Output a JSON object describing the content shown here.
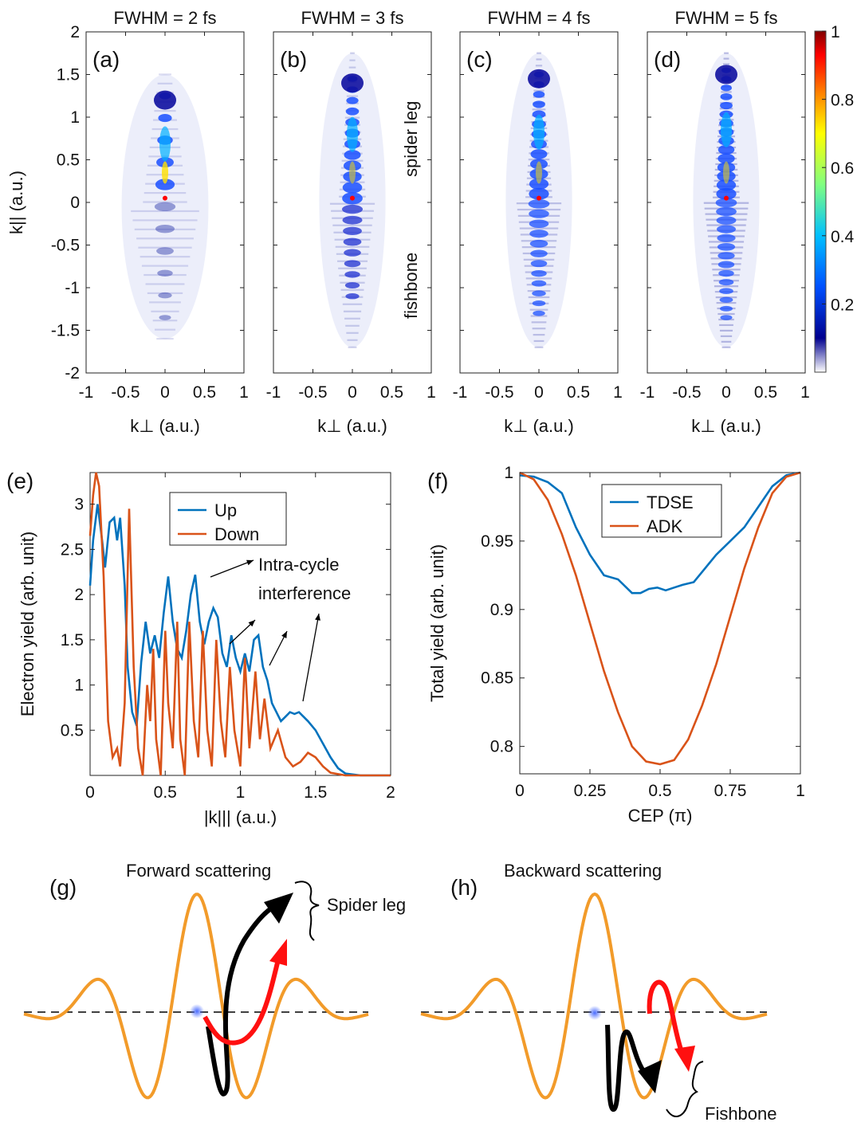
{
  "chart_data": {
    "maps": {
      "type": "heatmap",
      "panels": [
        {
          "label": "(a)",
          "title": "FWHM = 2 fs",
          "fwhm_fs": 2
        },
        {
          "label": "(b)",
          "title": "FWHM = 3 fs",
          "fwhm_fs": 3
        },
        {
          "label": "(c)",
          "title": "FWHM = 4 fs",
          "fwhm_fs": 4
        },
        {
          "label": "(d)",
          "title": "FWHM = 5 fs",
          "fwhm_fs": 5
        }
      ],
      "xlabel": "k⊥ (a.u.)",
      "ylabel": "k|| (a.u.)",
      "xlim": [
        -1,
        1
      ],
      "ylim": [
        -2,
        2
      ],
      "xticks": [
        -1,
        -0.5,
        0,
        0.5,
        1
      ],
      "xtick_labels": [
        "-1",
        "-0.5",
        "0",
        "0.5",
        "1"
      ],
      "yticks": [
        -2,
        -1.5,
        -1,
        -0.5,
        0,
        0.5,
        1,
        1.5,
        2
      ],
      "ytick_labels": [
        "-2",
        "-1.5",
        "-1",
        "-0.5",
        "0",
        "0.5",
        "1",
        "1.5",
        "2"
      ],
      "colorbar": {
        "range": [
          0,
          1
        ],
        "ticks": [
          0.2,
          0.4,
          0.6,
          0.8,
          1
        ],
        "tick_labels": [
          "0.2",
          "0.4",
          "0.6",
          "0.8",
          "1"
        ],
        "colors": [
          "#ffffff",
          "#00008f",
          "#0050ff",
          "#00c0ff",
          "#80ff80",
          "#ffff00",
          "#ff8000",
          "#ff0000",
          "#800000"
        ]
      },
      "annotations": [
        "spider leg",
        "fishbone"
      ]
    },
    "yield": {
      "type": "line",
      "label": "(e)",
      "xlabel": "|k||| (a.u.)",
      "ylabel": "Electron yield (arb. unit)",
      "xlim": [
        0,
        2
      ],
      "ylim": [
        0,
        3.35
      ],
      "xticks": [
        0,
        0.5,
        1,
        1.5,
        2
      ],
      "xtick_labels": [
        "0",
        "0.5",
        "1",
        "1.5",
        "2"
      ],
      "yticks": [
        0.5,
        1,
        1.5,
        2,
        2.5,
        3
      ],
      "ytick_labels": [
        "0.5",
        "1",
        "1.5",
        "2",
        "2.5",
        "3"
      ],
      "series": [
        {
          "name": "Up",
          "color": "#0072bd",
          "x": [
            0,
            0.02,
            0.05,
            0.08,
            0.1,
            0.13,
            0.16,
            0.18,
            0.2,
            0.23,
            0.25,
            0.28,
            0.31,
            0.34,
            0.37,
            0.4,
            0.43,
            0.46,
            0.49,
            0.52,
            0.55,
            0.58,
            0.61,
            0.64,
            0.67,
            0.7,
            0.73,
            0.76,
            0.79,
            0.82,
            0.85,
            0.88,
            0.91,
            0.94,
            0.97,
            1.0,
            1.03,
            1.06,
            1.09,
            1.12,
            1.15,
            1.18,
            1.21,
            1.24,
            1.27,
            1.3,
            1.33,
            1.36,
            1.39,
            1.42,
            1.45,
            1.5,
            1.55,
            1.6,
            1.65,
            1.7,
            1.8,
            2.0
          ],
          "y": [
            2.1,
            2.6,
            3.0,
            2.6,
            2.3,
            2.8,
            2.85,
            2.6,
            2.85,
            2.1,
            1.2,
            0.7,
            0.55,
            1.25,
            1.7,
            1.35,
            1.55,
            1.3,
            1.8,
            2.2,
            1.7,
            1.4,
            1.3,
            1.6,
            2.0,
            2.22,
            1.7,
            1.45,
            1.7,
            1.85,
            1.75,
            1.35,
            1.2,
            1.55,
            1.3,
            1.15,
            1.35,
            1.15,
            1.5,
            1.55,
            1.2,
            1.05,
            0.8,
            0.7,
            0.6,
            0.65,
            0.7,
            0.68,
            0.7,
            0.65,
            0.6,
            0.5,
            0.35,
            0.2,
            0.08,
            0.02,
            0.0,
            0.0
          ]
        },
        {
          "name": "Down",
          "color": "#d95319",
          "x": [
            0,
            0.02,
            0.04,
            0.06,
            0.09,
            0.12,
            0.15,
            0.18,
            0.2,
            0.23,
            0.26,
            0.29,
            0.32,
            0.35,
            0.38,
            0.4,
            0.42,
            0.44,
            0.47,
            0.5,
            0.52,
            0.55,
            0.58,
            0.6,
            0.63,
            0.66,
            0.69,
            0.72,
            0.75,
            0.78,
            0.81,
            0.84,
            0.87,
            0.9,
            0.93,
            0.96,
            1.0,
            1.03,
            1.06,
            1.1,
            1.13,
            1.16,
            1.2,
            1.25,
            1.3,
            1.35,
            1.4,
            1.45,
            1.5,
            1.55,
            1.6,
            1.7,
            2.0
          ],
          "y": [
            2.65,
            3.1,
            3.35,
            3.2,
            2.2,
            0.6,
            0.2,
            0.3,
            0.1,
            0.8,
            2.95,
            1.2,
            0.3,
            0.0,
            1.0,
            0.6,
            1.4,
            0.4,
            0.0,
            1.6,
            0.8,
            0.3,
            1.7,
            0.4,
            0.0,
            1.7,
            0.6,
            0.2,
            1.6,
            0.5,
            0.1,
            1.5,
            0.6,
            0.2,
            1.2,
            0.5,
            0.1,
            1.3,
            0.3,
            1.15,
            0.4,
            0.85,
            0.3,
            0.5,
            0.2,
            0.1,
            0.15,
            0.25,
            0.2,
            0.1,
            0.03,
            0.0,
            0.0
          ]
        }
      ],
      "annotation": [
        "Intra-cycle",
        "interference"
      ]
    },
    "cep": {
      "type": "line",
      "label": "(f)",
      "xlabel": "CEP (π)",
      "ylabel": "Total yield (arb. unit)",
      "xlim": [
        0,
        1
      ],
      "ylim": [
        0.78,
        1.0
      ],
      "xticks": [
        0,
        0.25,
        0.5,
        0.75,
        1
      ],
      "xtick_labels": [
        "0",
        "0.25",
        "0.5",
        "0.75",
        "1"
      ],
      "yticks": [
        0.8,
        0.85,
        0.9,
        0.95,
        1
      ],
      "ytick_labels": [
        "0.8",
        "0.85",
        "0.9",
        "0.95",
        "1"
      ],
      "series": [
        {
          "name": "TDSE",
          "color": "#0072bd",
          "x": [
            0,
            0.05,
            0.1,
            0.15,
            0.2,
            0.25,
            0.3,
            0.35,
            0.4,
            0.43,
            0.46,
            0.49,
            0.52,
            0.55,
            0.58,
            0.62,
            0.66,
            0.7,
            0.75,
            0.8,
            0.85,
            0.9,
            0.95,
            1.0
          ],
          "y": [
            0.998,
            0.997,
            0.993,
            0.985,
            0.96,
            0.94,
            0.925,
            0.922,
            0.912,
            0.912,
            0.915,
            0.916,
            0.914,
            0.916,
            0.918,
            0.92,
            0.93,
            0.94,
            0.95,
            0.96,
            0.975,
            0.99,
            0.998,
            1.0
          ],
          "y_note": "approx"
        },
        {
          "name": "ADK",
          "color": "#d95319",
          "x": [
            0,
            0.05,
            0.1,
            0.15,
            0.2,
            0.25,
            0.3,
            0.35,
            0.4,
            0.45,
            0.5,
            0.55,
            0.6,
            0.65,
            0.7,
            0.75,
            0.8,
            0.85,
            0.9,
            0.95,
            1.0
          ],
          "y": [
            1.0,
            0.995,
            0.98,
            0.955,
            0.925,
            0.89,
            0.855,
            0.825,
            0.8,
            0.789,
            0.787,
            0.79,
            0.805,
            0.83,
            0.86,
            0.895,
            0.93,
            0.96,
            0.985,
            0.997,
            1.0
          ]
        }
      ]
    }
  },
  "diagrams": [
    {
      "label": "(g)",
      "title": "Forward scattering",
      "bracket_label": "Spider leg"
    },
    {
      "label": "(h)",
      "title": "Backward scattering",
      "bracket_label": "Fishbone"
    }
  ],
  "colors": {
    "field": "#f29b2a",
    "arrow_red": "#ff1010",
    "arrow_black": "#000000",
    "ion": "#4a6cff"
  }
}
